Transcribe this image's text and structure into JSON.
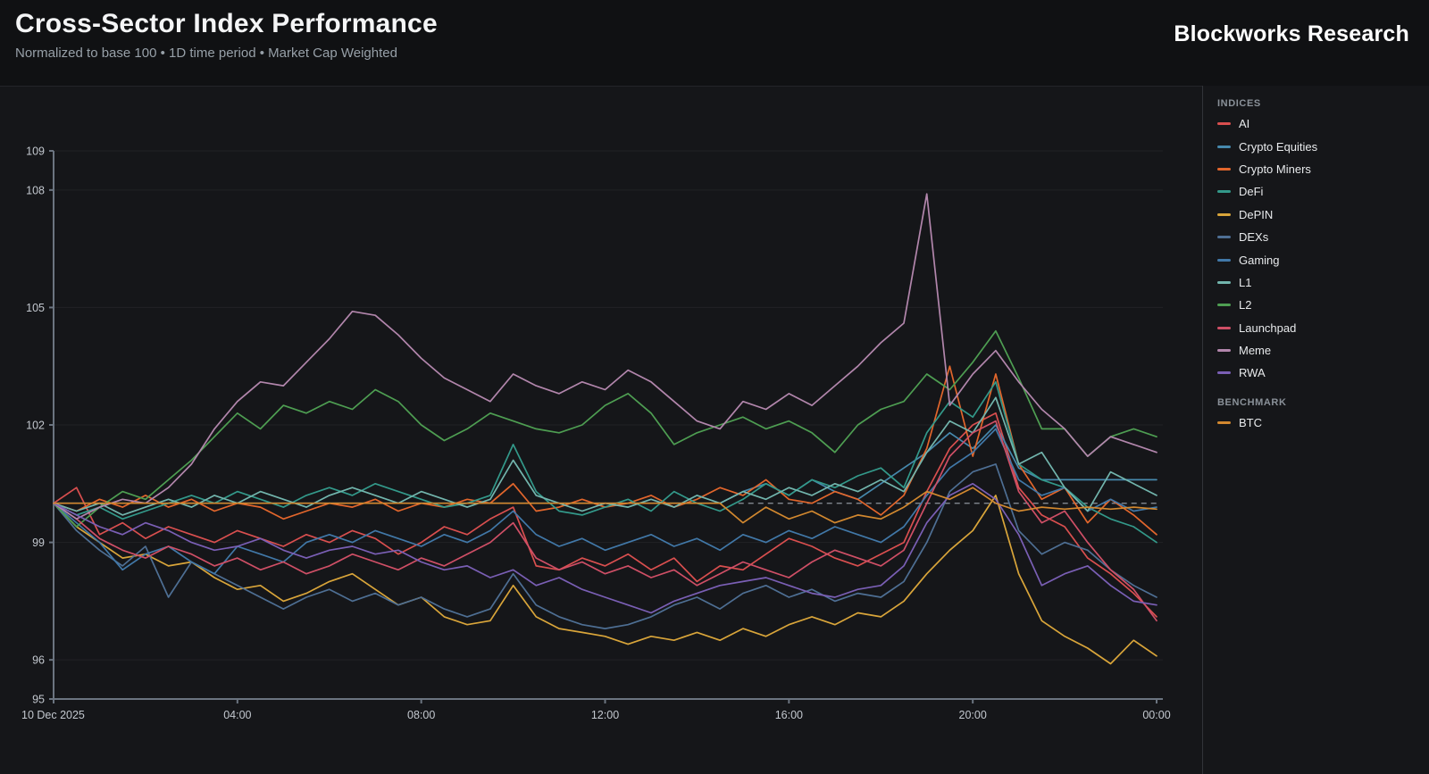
{
  "header": {
    "title": "Cross-Sector Index Performance",
    "subtitle": "Normalized to base 100 • 1D time period • Market Cap Weighted",
    "brand": "Blockworks Research"
  },
  "legend": {
    "indices_label": "INDICES",
    "benchmark_label": "BENCHMARK"
  },
  "colors": {
    "axis": "#6b7480",
    "grid": "rgba(255,255,255,0.055)",
    "tick_text": "#c3c8cf",
    "reference_dash": "#8d949c"
  },
  "chart_data": {
    "type": "line",
    "title": "Cross-Sector Index Performance",
    "xlabel": "",
    "ylabel": "",
    "x_hours": [
      0,
      0.5,
      1,
      1.5,
      2,
      2.5,
      3,
      3.5,
      4,
      4.5,
      5,
      5.5,
      6,
      6.5,
      7,
      7.5,
      8,
      8.5,
      9,
      9.5,
      10,
      10.5,
      11,
      11.5,
      12,
      12.5,
      13,
      13.5,
      14,
      14.5,
      15,
      15.5,
      16,
      16.5,
      17,
      17.5,
      18,
      18.5,
      19,
      19.5,
      20,
      20.5,
      21,
      21.5,
      22,
      22.5,
      23,
      23.5,
      24
    ],
    "x_ticks": [
      {
        "t": 0,
        "label": "10 Dec 2025",
        "align": "start"
      },
      {
        "t": 4,
        "label": "04:00"
      },
      {
        "t": 8,
        "label": "08:00"
      },
      {
        "t": 12,
        "label": "12:00"
      },
      {
        "t": 16,
        "label": "16:00"
      },
      {
        "t": 20,
        "label": "20:00"
      },
      {
        "t": 24,
        "label": "00:00"
      }
    ],
    "y_ticks": [
      95,
      96,
      99,
      102,
      105,
      108,
      109
    ],
    "gridlines_y": [
      96,
      99,
      102,
      105,
      108,
      109
    ],
    "ylim": [
      95,
      109
    ],
    "xlim_hours": [
      0,
      24
    ],
    "legend_position": "right",
    "reference_line": {
      "value": 100,
      "from_hour": 14.9,
      "to_hour": 24,
      "style": "dashed"
    },
    "series": [
      {
        "name": "AI",
        "group": "indices",
        "color": "#d94f4f",
        "values": [
          100,
          100.4,
          99.2,
          99.5,
          99.1,
          99.4,
          99.2,
          99.0,
          99.3,
          99.1,
          98.9,
          99.2,
          99.0,
          99.3,
          99.1,
          98.7,
          99.0,
          99.4,
          99.2,
          99.6,
          99.9,
          98.4,
          98.3,
          98.6,
          98.4,
          98.7,
          98.3,
          98.6,
          98.0,
          98.4,
          98.3,
          98.7,
          99.1,
          98.9,
          98.6,
          98.4,
          98.7,
          99.0,
          100.3,
          101.4,
          102.0,
          102.3,
          100.4,
          99.7,
          99.4,
          98.6,
          98.2,
          97.7,
          97.1
        ]
      },
      {
        "name": "Crypto Equities",
        "group": "indices",
        "color": "#4689ad",
        "values": [
          100,
          100,
          100,
          100,
          100,
          100,
          100,
          100,
          100,
          100,
          100,
          100,
          100,
          100,
          100,
          100,
          100,
          100,
          100,
          100,
          100,
          100,
          100,
          100,
          100,
          100,
          100,
          100,
          100,
          100,
          100.3,
          100.5,
          100.2,
          100.6,
          100.3,
          100.1,
          100.5,
          100.9,
          101.3,
          101.8,
          101.4,
          102.0,
          100.9,
          100.6,
          100.6,
          100.6,
          100.6,
          100.6,
          100.6
        ]
      },
      {
        "name": "Crypto Miners",
        "group": "indices",
        "color": "#e2662c",
        "values": [
          100,
          99.8,
          100.1,
          99.9,
          100.2,
          99.9,
          100.1,
          99.8,
          100.0,
          99.9,
          99.6,
          99.8,
          100.0,
          99.9,
          100.1,
          99.8,
          100.0,
          99.9,
          100.1,
          100.0,
          100.5,
          99.8,
          99.9,
          100.1,
          99.9,
          100.0,
          100.2,
          99.9,
          100.1,
          100.4,
          100.2,
          100.6,
          100.1,
          100.0,
          100.3,
          100.1,
          99.7,
          100.2,
          101.4,
          103.5,
          101.2,
          103.3,
          101.0,
          100.1,
          100.4,
          99.5,
          100.1,
          99.7,
          99.2
        ]
      },
      {
        "name": "DeFi",
        "group": "indices",
        "color": "#33998a",
        "values": [
          100,
          99.7,
          99.9,
          99.6,
          99.8,
          100.0,
          100.2,
          100.0,
          100.3,
          100.1,
          99.9,
          100.2,
          100.4,
          100.2,
          100.5,
          100.3,
          100.1,
          99.9,
          100.0,
          100.2,
          101.5,
          100.3,
          99.8,
          99.7,
          99.9,
          100.1,
          99.8,
          100.3,
          100.0,
          99.8,
          100.1,
          100.5,
          100.2,
          100.6,
          100.4,
          100.7,
          100.9,
          100.4,
          101.8,
          102.6,
          102.2,
          103.1,
          101.0,
          100.6,
          100.4,
          99.9,
          99.6,
          99.4,
          99.0
        ]
      },
      {
        "name": "DePIN",
        "group": "indices",
        "color": "#d9a53a",
        "values": [
          100,
          99.4,
          99.0,
          98.6,
          98.7,
          98.4,
          98.5,
          98.1,
          97.8,
          97.9,
          97.5,
          97.7,
          98.0,
          98.2,
          97.8,
          97.4,
          97.6,
          97.1,
          96.9,
          97.0,
          97.9,
          97.1,
          96.8,
          96.7,
          96.6,
          96.4,
          96.6,
          96.5,
          96.7,
          96.5,
          96.8,
          96.6,
          96.9,
          97.1,
          96.9,
          97.2,
          97.1,
          97.5,
          98.2,
          98.8,
          99.3,
          100.2,
          98.2,
          97.0,
          96.6,
          96.3,
          95.9,
          96.5,
          96.1
        ]
      },
      {
        "name": "DEXs",
        "group": "indices",
        "color": "#4e6f94",
        "values": [
          100,
          99.3,
          98.8,
          98.4,
          98.9,
          97.6,
          98.5,
          98.2,
          97.9,
          97.6,
          97.3,
          97.6,
          97.8,
          97.5,
          97.7,
          97.4,
          97.6,
          97.3,
          97.1,
          97.3,
          98.2,
          97.4,
          97.1,
          96.9,
          96.8,
          96.9,
          97.1,
          97.4,
          97.6,
          97.3,
          97.7,
          97.9,
          97.6,
          97.8,
          97.5,
          97.7,
          97.6,
          98.0,
          99.0,
          100.3,
          100.8,
          101.0,
          99.3,
          98.7,
          99.0,
          98.8,
          98.3,
          97.9,
          97.6
        ]
      },
      {
        "name": "Gaming",
        "group": "indices",
        "color": "#4178a8",
        "values": [
          100,
          99.5,
          99.0,
          98.3,
          98.7,
          98.9,
          98.5,
          98.2,
          98.9,
          98.7,
          98.5,
          99.0,
          99.2,
          99.0,
          99.3,
          99.1,
          98.9,
          99.2,
          99.0,
          99.3,
          99.8,
          99.2,
          98.9,
          99.1,
          98.8,
          99.0,
          99.2,
          98.9,
          99.1,
          98.8,
          99.2,
          99.0,
          99.3,
          99.1,
          99.4,
          99.2,
          99.0,
          99.4,
          100.2,
          100.9,
          101.3,
          101.9,
          100.6,
          100.2,
          100.4,
          99.8,
          100.1,
          99.8,
          99.9
        ]
      },
      {
        "name": "L1",
        "group": "indices",
        "color": "#72b5ad",
        "values": [
          100,
          99.8,
          100.0,
          99.7,
          99.9,
          100.1,
          99.9,
          100.2,
          100.0,
          100.3,
          100.1,
          99.9,
          100.2,
          100.4,
          100.2,
          100.0,
          100.3,
          100.1,
          99.9,
          100.1,
          101.1,
          100.2,
          100.0,
          99.8,
          100.0,
          99.9,
          100.1,
          99.9,
          100.2,
          100.0,
          100.3,
          100.1,
          100.4,
          100.2,
          100.5,
          100.3,
          100.6,
          100.3,
          101.3,
          102.1,
          101.8,
          102.7,
          101.0,
          101.3,
          100.4,
          99.8,
          100.8,
          100.5,
          100.2
        ]
      },
      {
        "name": "L2",
        "group": "indices",
        "color": "#4e9e52",
        "values": [
          100,
          99.4,
          99.9,
          100.3,
          100.1,
          100.6,
          101.1,
          101.7,
          102.3,
          101.9,
          102.5,
          102.3,
          102.6,
          102.4,
          102.9,
          102.6,
          102.0,
          101.6,
          101.9,
          102.3,
          102.1,
          101.9,
          101.8,
          102.0,
          102.5,
          102.8,
          102.3,
          101.5,
          101.8,
          102.0,
          102.2,
          101.9,
          102.1,
          101.8,
          101.3,
          102.0,
          102.4,
          102.6,
          103.3,
          102.9,
          103.6,
          104.4,
          103.2,
          101.9,
          101.9,
          101.2,
          101.7,
          101.9,
          101.7
        ]
      },
      {
        "name": "Launchpad",
        "group": "indices",
        "color": "#cf4f66",
        "values": [
          100,
          99.6,
          99.1,
          98.8,
          98.6,
          98.9,
          98.7,
          98.4,
          98.6,
          98.3,
          98.5,
          98.2,
          98.4,
          98.7,
          98.5,
          98.3,
          98.6,
          98.4,
          98.7,
          99.0,
          99.5,
          98.6,
          98.3,
          98.5,
          98.2,
          98.4,
          98.1,
          98.3,
          97.9,
          98.2,
          98.5,
          98.3,
          98.1,
          98.5,
          98.8,
          98.6,
          98.4,
          98.8,
          100.0,
          101.2,
          101.8,
          102.1,
          100.3,
          99.5,
          99.8,
          99.0,
          98.3,
          97.8,
          97.0
        ]
      },
      {
        "name": "Meme",
        "group": "indices",
        "color": "#b286ac",
        "values": [
          100,
          99.6,
          99.9,
          100.1,
          100.0,
          100.4,
          101.0,
          101.9,
          102.6,
          103.1,
          103.0,
          103.6,
          104.2,
          104.9,
          104.8,
          104.3,
          103.7,
          103.2,
          102.9,
          102.6,
          103.3,
          103.0,
          102.8,
          103.1,
          102.9,
          103.4,
          103.1,
          102.6,
          102.1,
          101.9,
          102.6,
          102.4,
          102.8,
          102.5,
          103.0,
          103.5,
          104.1,
          104.6,
          107.9,
          102.5,
          103.3,
          103.9,
          103.1,
          102.4,
          101.9,
          101.2,
          101.7,
          101.5,
          101.3
        ]
      },
      {
        "name": "RWA",
        "group": "indices",
        "color": "#7a5fb5",
        "values": [
          100,
          99.7,
          99.4,
          99.2,
          99.5,
          99.3,
          99.0,
          98.8,
          98.9,
          99.1,
          98.8,
          98.6,
          98.8,
          98.9,
          98.7,
          98.8,
          98.5,
          98.3,
          98.4,
          98.1,
          98.3,
          97.9,
          98.1,
          97.8,
          97.6,
          97.4,
          97.2,
          97.5,
          97.7,
          97.9,
          98.0,
          98.1,
          97.9,
          97.7,
          97.6,
          97.8,
          97.9,
          98.4,
          99.5,
          100.2,
          100.5,
          100.1,
          99.2,
          97.9,
          98.2,
          98.4,
          97.9,
          97.5,
          97.4
        ]
      },
      {
        "name": "BTC",
        "group": "benchmark",
        "color": "#d2882f",
        "values": [
          100,
          100,
          100,
          100,
          100,
          100,
          100,
          100,
          100,
          100,
          100,
          100,
          100,
          100,
          100,
          100,
          100,
          100,
          100,
          100,
          100,
          100,
          100,
          100,
          100,
          100,
          100,
          100,
          100,
          100,
          99.5,
          99.9,
          99.6,
          99.8,
          99.5,
          99.7,
          99.6,
          99.9,
          100.3,
          100.1,
          100.4,
          100.0,
          99.8,
          99.9,
          99.85,
          99.9,
          99.85,
          99.9,
          99.85
        ]
      }
    ]
  }
}
